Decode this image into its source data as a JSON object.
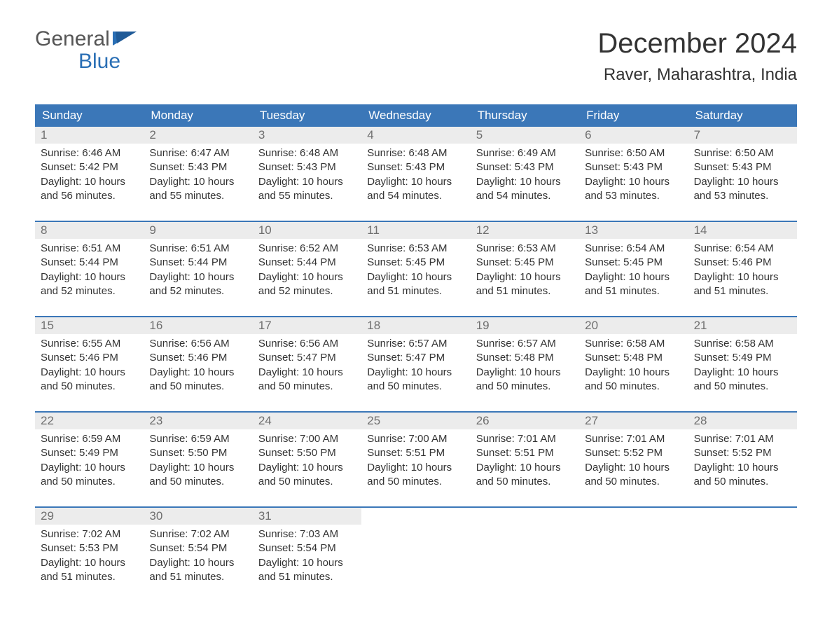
{
  "logo": {
    "line1": "General",
    "line2": "Blue"
  },
  "title": "December 2024",
  "location": "Raver, Maharashtra, India",
  "colors": {
    "header_bg": "#3b77b8",
    "header_text": "#ffffff",
    "row_divider": "#3b77b8",
    "daynum_bg": "#ececec",
    "daynum_text": "#6f6f6f",
    "body_text": "#333333",
    "logo_gray": "#565656",
    "logo_blue": "#2a6fb5",
    "page_bg": "#ffffff"
  },
  "typography": {
    "title_fontsize": 40,
    "location_fontsize": 24,
    "header_fontsize": 17,
    "daynum_fontsize": 17,
    "body_fontsize": 15,
    "logo_fontsize": 30
  },
  "layout": {
    "columns": 7,
    "weeks": 5,
    "first_weekday": "Sunday"
  },
  "weekdays": [
    "Sunday",
    "Monday",
    "Tuesday",
    "Wednesday",
    "Thursday",
    "Friday",
    "Saturday"
  ],
  "days": [
    {
      "n": 1,
      "sunrise": "6:46 AM",
      "sunset": "5:42 PM",
      "daylight_h": 10,
      "daylight_m": 56
    },
    {
      "n": 2,
      "sunrise": "6:47 AM",
      "sunset": "5:43 PM",
      "daylight_h": 10,
      "daylight_m": 55
    },
    {
      "n": 3,
      "sunrise": "6:48 AM",
      "sunset": "5:43 PM",
      "daylight_h": 10,
      "daylight_m": 55
    },
    {
      "n": 4,
      "sunrise": "6:48 AM",
      "sunset": "5:43 PM",
      "daylight_h": 10,
      "daylight_m": 54
    },
    {
      "n": 5,
      "sunrise": "6:49 AM",
      "sunset": "5:43 PM",
      "daylight_h": 10,
      "daylight_m": 54
    },
    {
      "n": 6,
      "sunrise": "6:50 AM",
      "sunset": "5:43 PM",
      "daylight_h": 10,
      "daylight_m": 53
    },
    {
      "n": 7,
      "sunrise": "6:50 AM",
      "sunset": "5:43 PM",
      "daylight_h": 10,
      "daylight_m": 53
    },
    {
      "n": 8,
      "sunrise": "6:51 AM",
      "sunset": "5:44 PM",
      "daylight_h": 10,
      "daylight_m": 52
    },
    {
      "n": 9,
      "sunrise": "6:51 AM",
      "sunset": "5:44 PM",
      "daylight_h": 10,
      "daylight_m": 52
    },
    {
      "n": 10,
      "sunrise": "6:52 AM",
      "sunset": "5:44 PM",
      "daylight_h": 10,
      "daylight_m": 52
    },
    {
      "n": 11,
      "sunrise": "6:53 AM",
      "sunset": "5:45 PM",
      "daylight_h": 10,
      "daylight_m": 51
    },
    {
      "n": 12,
      "sunrise": "6:53 AM",
      "sunset": "5:45 PM",
      "daylight_h": 10,
      "daylight_m": 51
    },
    {
      "n": 13,
      "sunrise": "6:54 AM",
      "sunset": "5:45 PM",
      "daylight_h": 10,
      "daylight_m": 51
    },
    {
      "n": 14,
      "sunrise": "6:54 AM",
      "sunset": "5:46 PM",
      "daylight_h": 10,
      "daylight_m": 51
    },
    {
      "n": 15,
      "sunrise": "6:55 AM",
      "sunset": "5:46 PM",
      "daylight_h": 10,
      "daylight_m": 50
    },
    {
      "n": 16,
      "sunrise": "6:56 AM",
      "sunset": "5:46 PM",
      "daylight_h": 10,
      "daylight_m": 50
    },
    {
      "n": 17,
      "sunrise": "6:56 AM",
      "sunset": "5:47 PM",
      "daylight_h": 10,
      "daylight_m": 50
    },
    {
      "n": 18,
      "sunrise": "6:57 AM",
      "sunset": "5:47 PM",
      "daylight_h": 10,
      "daylight_m": 50
    },
    {
      "n": 19,
      "sunrise": "6:57 AM",
      "sunset": "5:48 PM",
      "daylight_h": 10,
      "daylight_m": 50
    },
    {
      "n": 20,
      "sunrise": "6:58 AM",
      "sunset": "5:48 PM",
      "daylight_h": 10,
      "daylight_m": 50
    },
    {
      "n": 21,
      "sunrise": "6:58 AM",
      "sunset": "5:49 PM",
      "daylight_h": 10,
      "daylight_m": 50
    },
    {
      "n": 22,
      "sunrise": "6:59 AM",
      "sunset": "5:49 PM",
      "daylight_h": 10,
      "daylight_m": 50
    },
    {
      "n": 23,
      "sunrise": "6:59 AM",
      "sunset": "5:50 PM",
      "daylight_h": 10,
      "daylight_m": 50
    },
    {
      "n": 24,
      "sunrise": "7:00 AM",
      "sunset": "5:50 PM",
      "daylight_h": 10,
      "daylight_m": 50
    },
    {
      "n": 25,
      "sunrise": "7:00 AM",
      "sunset": "5:51 PM",
      "daylight_h": 10,
      "daylight_m": 50
    },
    {
      "n": 26,
      "sunrise": "7:01 AM",
      "sunset": "5:51 PM",
      "daylight_h": 10,
      "daylight_m": 50
    },
    {
      "n": 27,
      "sunrise": "7:01 AM",
      "sunset": "5:52 PM",
      "daylight_h": 10,
      "daylight_m": 50
    },
    {
      "n": 28,
      "sunrise": "7:01 AM",
      "sunset": "5:52 PM",
      "daylight_h": 10,
      "daylight_m": 50
    },
    {
      "n": 29,
      "sunrise": "7:02 AM",
      "sunset": "5:53 PM",
      "daylight_h": 10,
      "daylight_m": 51
    },
    {
      "n": 30,
      "sunrise": "7:02 AM",
      "sunset": "5:54 PM",
      "daylight_h": 10,
      "daylight_m": 51
    },
    {
      "n": 31,
      "sunrise": "7:03 AM",
      "sunset": "5:54 PM",
      "daylight_h": 10,
      "daylight_m": 51
    }
  ],
  "labels": {
    "sunrise_prefix": "Sunrise: ",
    "sunset_prefix": "Sunset: ",
    "daylight_l1_prefix": "Daylight: ",
    "daylight_l1_suffix": " hours",
    "daylight_l2_prefix": "and ",
    "daylight_l2_suffix": " minutes."
  }
}
